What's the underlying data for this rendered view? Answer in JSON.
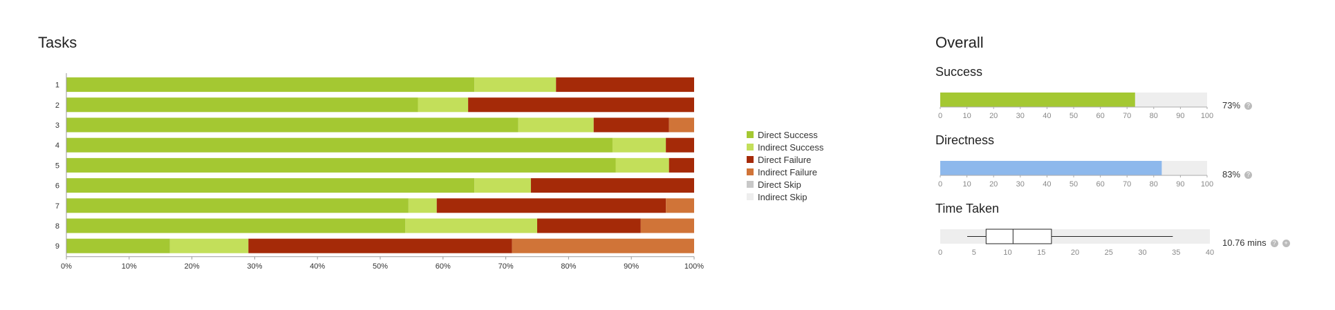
{
  "tasks_title": "Tasks",
  "overall_title": "Overall",
  "success_label": "Success",
  "directness_label": "Directness",
  "time_label": "Time Taken",
  "success_value_text": "73%",
  "directness_value_text": "83%",
  "time_value_text": "10.76 mins",
  "help_glyph": "?",
  "colors": {
    "direct_success": "#a4c832",
    "indirect_success": "#c3df5a",
    "direct_failure": "#a52a08",
    "indirect_failure": "#d07438",
    "direct_skip": "#c8c8c8",
    "indirect_skip": "#eeeeee",
    "success_bar": "#a4c832",
    "directness_bar": "#8db8ec",
    "track": "#eeeeee"
  },
  "legend": [
    {
      "label": "Direct Success",
      "color": "#a4c832"
    },
    {
      "label": "Indirect Success",
      "color": "#c3df5a"
    },
    {
      "label": "Direct Failure",
      "color": "#a52a08"
    },
    {
      "label": "Indirect Failure",
      "color": "#d07438"
    },
    {
      "label": "Direct Skip",
      "color": "#c8c8c8"
    },
    {
      "label": "Indirect Skip",
      "color": "#eeeeee"
    }
  ],
  "chart_data": [
    {
      "type": "bar",
      "orientation": "horizontal",
      "stacked": true,
      "categories": [
        "1",
        "2",
        "3",
        "4",
        "5",
        "6",
        "7",
        "8",
        "9"
      ],
      "xticks": [
        "0%",
        "10%",
        "20%",
        "30%",
        "40%",
        "50%",
        "60%",
        "70%",
        "80%",
        "90%",
        "100%"
      ],
      "xlim": [
        0,
        100
      ],
      "series": [
        {
          "name": "Direct Success",
          "values": [
            65,
            56,
            72,
            87,
            87.5,
            65,
            54.5,
            54,
            16.5
          ]
        },
        {
          "name": "Indirect Success",
          "values": [
            13,
            8,
            12,
            8.5,
            8.5,
            9,
            4.5,
            21,
            12.5
          ]
        },
        {
          "name": "Direct Failure",
          "values": [
            22,
            36,
            12,
            4.5,
            4,
            26,
            36.5,
            16.5,
            42
          ]
        },
        {
          "name": "Indirect Failure",
          "values": [
            0,
            0,
            4,
            0,
            0,
            0,
            4.5,
            8.5,
            29
          ]
        },
        {
          "name": "Direct Skip",
          "values": [
            0,
            0,
            0,
            0,
            0,
            0,
            0,
            0,
            0
          ]
        },
        {
          "name": "Indirect Skip",
          "values": [
            0,
            0,
            0,
            0,
            0,
            0,
            0,
            0,
            0
          ]
        }
      ],
      "legend_position": "right"
    },
    {
      "type": "bar",
      "orientation": "horizontal",
      "values": [
        73
      ],
      "xlim": [
        0,
        100
      ],
      "xticks": [
        "0",
        "10",
        "20",
        "30",
        "40",
        "50",
        "60",
        "70",
        "80",
        "90",
        "100"
      ]
    },
    {
      "type": "bar",
      "orientation": "horizontal",
      "values": [
        83
      ],
      "xlim": [
        0,
        100
      ],
      "xticks": [
        "0",
        "10",
        "20",
        "30",
        "40",
        "50",
        "60",
        "70",
        "80",
        "90",
        "100"
      ]
    },
    {
      "type": "boxplot",
      "orientation": "horizontal",
      "whisker_low": 4,
      "q1": 6.8,
      "median": 10.8,
      "q3": 16.5,
      "whisker_high": 34.5,
      "xlim": [
        0,
        40
      ],
      "xticks": [
        "0",
        "5",
        "10",
        "15",
        "20",
        "25",
        "30",
        "35",
        "40"
      ]
    }
  ]
}
